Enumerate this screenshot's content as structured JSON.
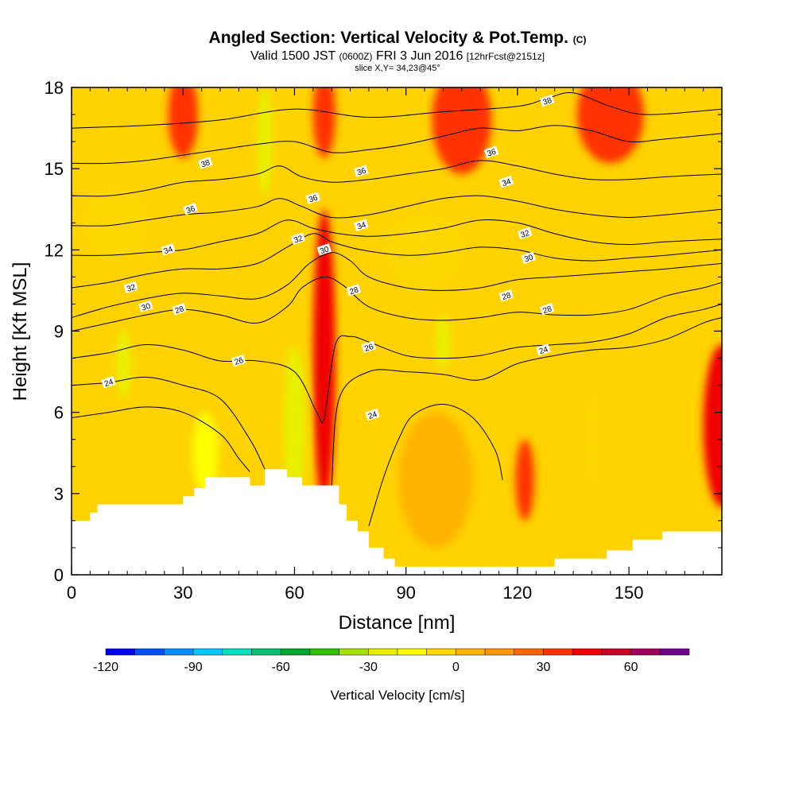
{
  "header": {
    "title": "Angled Section: Vertical Velocity & Pot.Temp.",
    "title_tag": "(C)",
    "valid_prefix": "Valid 1500 JST",
    "valid_utc": "(0600Z)",
    "valid_date": "FRI 3 Jun 2016",
    "forecast": "[12hrFcst@2151z]",
    "slice": "slice X,Y= 34,23@45°"
  },
  "chart_data": {
    "type": "heatmap",
    "xlabel": "Distance [nm]",
    "ylabel": "Height [Kft MSL]",
    "xlim": [
      0,
      175
    ],
    "ylim": [
      0,
      18
    ],
    "xticks": [
      0,
      30,
      60,
      90,
      120,
      150
    ],
    "yticks": [
      0,
      3,
      6,
      9,
      12,
      15,
      18
    ],
    "colorbar": {
      "title": "Vertical Velocity [cm/s]",
      "min": -120,
      "max": 80,
      "step": 10,
      "tick_values": [
        -120,
        -90,
        -60,
        -30,
        0,
        30,
        60
      ],
      "colors": [
        "#0000f0",
        "#0050ff",
        "#0090ff",
        "#00c8ff",
        "#00e0c0",
        "#00c070",
        "#00a830",
        "#30c000",
        "#a8e000",
        "#e8f000",
        "#ffff00",
        "#ffd700",
        "#ffb400",
        "#ff9600",
        "#ff6400",
        "#ff3200",
        "#f00000",
        "#c80028",
        "#a0005a",
        "#6e008c"
      ]
    },
    "terrain_profile": [
      [
        0,
        2.0
      ],
      [
        5,
        2.0
      ],
      [
        5,
        2.3
      ],
      [
        7,
        2.3
      ],
      [
        7,
        2.6
      ],
      [
        30,
        2.6
      ],
      [
        30,
        2.9
      ],
      [
        33,
        2.9
      ],
      [
        33,
        3.2
      ],
      [
        36,
        3.2
      ],
      [
        36,
        3.6
      ],
      [
        48,
        3.6
      ],
      [
        48,
        3.3
      ],
      [
        52,
        3.3
      ],
      [
        52,
        3.9
      ],
      [
        58,
        3.9
      ],
      [
        58,
        3.6
      ],
      [
        62,
        3.6
      ],
      [
        62,
        3.3
      ],
      [
        72,
        3.3
      ],
      [
        72,
        2.6
      ],
      [
        74,
        2.6
      ],
      [
        74,
        2.0
      ],
      [
        77,
        2.0
      ],
      [
        77,
        1.6
      ],
      [
        80,
        1.6
      ],
      [
        80,
        1.0
      ],
      [
        84,
        1.0
      ],
      [
        84,
        0.6
      ],
      [
        87,
        0.6
      ],
      [
        87,
        0.3
      ],
      [
        130,
        0.3
      ],
      [
        130,
        0.6
      ],
      [
        144,
        0.6
      ],
      [
        144,
        0.9
      ],
      [
        151,
        0.9
      ],
      [
        151,
        1.3
      ],
      [
        159,
        1.3
      ],
      [
        159,
        1.6
      ],
      [
        175,
        1.6
      ]
    ],
    "theta_contours": [
      {
        "level": 24,
        "points": [
          [
            0,
            5.8
          ],
          [
            10,
            6.0
          ],
          [
            20,
            6.2
          ],
          [
            30,
            6.0
          ],
          [
            40,
            5.2
          ],
          [
            45,
            4.3
          ],
          [
            48,
            3.8
          ]
        ]
      },
      {
        "level": 24,
        "points": [
          [
            80,
            1.8
          ],
          [
            84,
            3.6
          ],
          [
            88,
            5.0
          ],
          [
            92,
            5.9
          ],
          [
            100,
            6.3
          ],
          [
            108,
            5.8
          ],
          [
            114,
            4.6
          ],
          [
            116,
            3.5
          ]
        ]
      },
      {
        "level": 24,
        "points": [
          [
            0,
            7.0
          ],
          [
            10,
            7.1
          ],
          [
            20,
            7.3
          ],
          [
            30,
            7.0
          ],
          [
            40,
            6.5
          ],
          [
            48,
            5.0
          ],
          [
            52,
            3.9
          ]
        ]
      },
      {
        "level": 24,
        "points": [
          [
            70,
            3.3
          ],
          [
            72,
            6.5
          ],
          [
            80,
            7.5
          ],
          [
            90,
            7.5
          ],
          [
            100,
            7.4
          ],
          [
            110,
            7.2
          ],
          [
            120,
            7.8
          ],
          [
            130,
            8.1
          ],
          [
            140,
            8.3
          ],
          [
            150,
            8.4
          ],
          [
            160,
            8.7
          ],
          [
            170,
            9.3
          ],
          [
            175,
            9.5
          ]
        ]
      },
      {
        "level": 26,
        "points": [
          [
            0,
            8.0
          ],
          [
            10,
            8.2
          ],
          [
            20,
            8.5
          ],
          [
            30,
            8.3
          ],
          [
            40,
            7.9
          ],
          [
            50,
            7.9
          ],
          [
            60,
            7.5
          ],
          [
            66,
            6.0
          ],
          [
            68,
            5.8
          ],
          [
            71,
            8.5
          ],
          [
            75,
            8.8
          ],
          [
            80,
            8.6
          ],
          [
            90,
            8.1
          ],
          [
            100,
            8.0
          ],
          [
            110,
            8.1
          ],
          [
            120,
            8.4
          ],
          [
            130,
            8.5
          ],
          [
            140,
            8.6
          ],
          [
            150,
            8.9
          ],
          [
            160,
            9.5
          ],
          [
            170,
            9.8
          ],
          [
            175,
            10.0
          ]
        ]
      },
      {
        "level": 28,
        "points": [
          [
            0,
            9.0
          ],
          [
            10,
            9.3
          ],
          [
            20,
            9.6
          ],
          [
            30,
            9.8
          ],
          [
            40,
            9.6
          ],
          [
            50,
            9.3
          ],
          [
            58,
            9.9
          ],
          [
            62,
            10.6
          ],
          [
            68,
            11.0
          ],
          [
            73,
            10.7
          ],
          [
            80,
            9.9
          ],
          [
            90,
            9.5
          ],
          [
            100,
            9.4
          ],
          [
            110,
            9.5
          ],
          [
            120,
            9.7
          ],
          [
            130,
            9.6
          ],
          [
            140,
            9.6
          ],
          [
            150,
            9.8
          ],
          [
            160,
            10.3
          ],
          [
            170,
            10.6
          ],
          [
            175,
            10.8
          ]
        ]
      },
      {
        "level": 30,
        "points": [
          [
            0,
            9.5
          ],
          [
            10,
            9.9
          ],
          [
            20,
            10.2
          ],
          [
            30,
            10.4
          ],
          [
            40,
            10.3
          ],
          [
            50,
            10.2
          ],
          [
            58,
            10.7
          ],
          [
            64,
            11.5
          ],
          [
            70,
            11.9
          ],
          [
            75,
            11.6
          ],
          [
            80,
            11.0
          ],
          [
            90,
            10.6
          ],
          [
            100,
            10.5
          ],
          [
            110,
            10.6
          ],
          [
            120,
            10.9
          ],
          [
            130,
            11.0
          ],
          [
            140,
            11.1
          ],
          [
            150,
            11.2
          ],
          [
            160,
            11.3
          ],
          [
            175,
            11.5
          ]
        ]
      },
      {
        "level": 32,
        "points": [
          [
            0,
            10.6
          ],
          [
            10,
            10.8
          ],
          [
            20,
            11.1
          ],
          [
            30,
            11.3
          ],
          [
            40,
            11.3
          ],
          [
            50,
            11.5
          ],
          [
            58,
            12.1
          ],
          [
            65,
            12.6
          ],
          [
            70,
            12.3
          ],
          [
            78,
            12.0
          ],
          [
            90,
            11.8
          ],
          [
            100,
            11.9
          ],
          [
            110,
            12.1
          ],
          [
            120,
            12.0
          ],
          [
            130,
            11.7
          ],
          [
            140,
            11.6
          ],
          [
            150,
            11.7
          ],
          [
            160,
            11.8
          ],
          [
            175,
            12.0
          ]
        ]
      },
      {
        "level": 34,
        "points": [
          [
            0,
            11.8
          ],
          [
            10,
            11.8
          ],
          [
            20,
            11.9
          ],
          [
            30,
            12.0
          ],
          [
            40,
            12.3
          ],
          [
            50,
            12.6
          ],
          [
            58,
            13.1
          ],
          [
            65,
            12.8
          ],
          [
            72,
            12.6
          ],
          [
            80,
            12.5
          ],
          [
            90,
            12.6
          ],
          [
            100,
            12.8
          ],
          [
            110,
            13.1
          ],
          [
            120,
            13.0
          ],
          [
            130,
            12.6
          ],
          [
            140,
            12.3
          ],
          [
            150,
            12.2
          ],
          [
            160,
            12.3
          ],
          [
            175,
            12.4
          ]
        ]
      },
      {
        "level": 36,
        "points": [
          [
            0,
            12.9
          ],
          [
            10,
            12.9
          ],
          [
            20,
            13.1
          ],
          [
            30,
            13.3
          ],
          [
            40,
            13.4
          ],
          [
            50,
            13.6
          ],
          [
            56,
            13.9
          ],
          [
            62,
            13.6
          ],
          [
            70,
            13.2
          ],
          [
            80,
            13.3
          ],
          [
            90,
            13.6
          ],
          [
            100,
            13.9
          ],
          [
            110,
            14.0
          ],
          [
            120,
            13.8
          ],
          [
            130,
            13.5
          ],
          [
            140,
            13.3
          ],
          [
            150,
            13.2
          ],
          [
            160,
            13.3
          ],
          [
            175,
            13.5
          ]
        ]
      },
      {
        "level": 36,
        "points": [
          [
            0,
            14.0
          ],
          [
            10,
            14.0
          ],
          [
            20,
            14.2
          ],
          [
            30,
            14.5
          ],
          [
            40,
            14.6
          ],
          [
            50,
            14.8
          ],
          [
            56,
            15.1
          ],
          [
            62,
            14.7
          ],
          [
            70,
            14.5
          ],
          [
            80,
            14.6
          ],
          [
            90,
            14.8
          ],
          [
            100,
            15.0
          ],
          [
            110,
            15.3
          ],
          [
            120,
            15.1
          ],
          [
            130,
            14.8
          ],
          [
            140,
            14.6
          ],
          [
            150,
            14.6
          ],
          [
            160,
            14.7
          ],
          [
            175,
            14.8
          ]
        ]
      },
      {
        "level": 38,
        "points": [
          [
            0,
            15.2
          ],
          [
            10,
            15.2
          ],
          [
            20,
            15.3
          ],
          [
            30,
            15.5
          ],
          [
            40,
            15.7
          ],
          [
            50,
            15.9
          ],
          [
            60,
            16.0
          ],
          [
            70,
            15.6
          ],
          [
            80,
            15.7
          ],
          [
            90,
            15.9
          ],
          [
            100,
            16.2
          ],
          [
            110,
            16.5
          ],
          [
            120,
            16.4
          ],
          [
            130,
            16.6
          ],
          [
            140,
            16.4
          ],
          [
            150,
            16.0
          ],
          [
            160,
            16.1
          ],
          [
            175,
            16.3
          ]
        ]
      },
      {
        "level": 38,
        "points": [
          [
            0,
            16.5
          ],
          [
            20,
            16.6
          ],
          [
            40,
            16.8
          ],
          [
            60,
            17.2
          ],
          [
            80,
            16.9
          ],
          [
            100,
            17.1
          ],
          [
            120,
            17.3
          ],
          [
            128,
            17.6
          ],
          [
            135,
            17.8
          ],
          [
            145,
            17.3
          ],
          [
            155,
            17.0
          ],
          [
            175,
            17.2
          ]
        ]
      }
    ],
    "contour_labels": [
      {
        "text": "24",
        "x": 10,
        "y": 7.1
      },
      {
        "text": "24",
        "x": 81,
        "y": 5.9
      },
      {
        "text": "24",
        "x": 127,
        "y": 8.3
      },
      {
        "text": "26",
        "x": 45,
        "y": 7.9
      },
      {
        "text": "26",
        "x": 80,
        "y": 8.4
      },
      {
        "text": "28",
        "x": 29,
        "y": 9.8
      },
      {
        "text": "28",
        "x": 76,
        "y": 10.5
      },
      {
        "text": "28",
        "x": 117,
        "y": 10.3
      },
      {
        "text": "28",
        "x": 128,
        "y": 9.8
      },
      {
        "text": "30",
        "x": 20,
        "y": 9.9
      },
      {
        "text": "30",
        "x": 68,
        "y": 12.0
      },
      {
        "text": "30",
        "x": 123,
        "y": 11.7
      },
      {
        "text": "32",
        "x": 16,
        "y": 10.6
      },
      {
        "text": "32",
        "x": 61,
        "y": 12.4
      },
      {
        "text": "32",
        "x": 122,
        "y": 12.6
      },
      {
        "text": "34",
        "x": 26,
        "y": 12.0
      },
      {
        "text": "34",
        "x": 78,
        "y": 12.9
      },
      {
        "text": "34",
        "x": 117,
        "y": 14.5
      },
      {
        "text": "36",
        "x": 32,
        "y": 13.5
      },
      {
        "text": "36",
        "x": 65,
        "y": 13.9
      },
      {
        "text": "36",
        "x": 78,
        "y": 14.9
      },
      {
        "text": "36",
        "x": 113,
        "y": 15.6
      },
      {
        "text": "38",
        "x": 36,
        "y": 15.2
      },
      {
        "text": "38",
        "x": 128,
        "y": 17.5
      }
    ],
    "velocity_features": [
      {
        "x": 68,
        "y": 8.5,
        "rx": 1.6,
        "ry": 4.0,
        "value": 70
      },
      {
        "x": 68,
        "y": 8.0,
        "rx": 3.0,
        "ry": 5.5,
        "value": 40
      },
      {
        "x": 175,
        "y": 5.5,
        "rx": 5.0,
        "ry": 3.0,
        "value": 45
      },
      {
        "x": 122,
        "y": 3.5,
        "rx": 2.5,
        "ry": 1.5,
        "value": 35
      },
      {
        "x": 30,
        "y": 17.0,
        "rx": 4.0,
        "ry": 1.6,
        "value": 30
      },
      {
        "x": 68,
        "y": 17.0,
        "rx": 3.0,
        "ry": 1.6,
        "value": 30
      },
      {
        "x": 105,
        "y": 16.8,
        "rx": 8.0,
        "ry": 2.0,
        "value": 30
      },
      {
        "x": 145,
        "y": 17.0,
        "rx": 9.0,
        "ry": 1.8,
        "value": 32
      },
      {
        "x": 36,
        "y": 4.5,
        "rx": 3.5,
        "ry": 1.5,
        "value": -20
      },
      {
        "x": 60,
        "y": 5.5,
        "rx": 3.0,
        "ry": 3.0,
        "value": -22
      },
      {
        "x": 100,
        "y": 8.6,
        "rx": 2.0,
        "ry": 1.0,
        "value": -28
      },
      {
        "x": 52,
        "y": 16.0,
        "rx": 2.0,
        "ry": 2.0,
        "value": -25
      },
      {
        "x": 14,
        "y": 7.8,
        "rx": 2.0,
        "ry": 1.3,
        "value": -25
      },
      {
        "x": 140,
        "y": 5.0,
        "rx": 2.5,
        "ry": 3.0,
        "value": -10
      },
      {
        "x": 95,
        "y": 12.0,
        "rx": 12.0,
        "ry": 1.5,
        "value": -10
      },
      {
        "x": 12,
        "y": 13.0,
        "rx": 10.0,
        "ry": 1.5,
        "value": -10
      },
      {
        "x": 98,
        "y": 3.5,
        "rx": 10.0,
        "ry": 2.5,
        "value": 5
      }
    ]
  }
}
